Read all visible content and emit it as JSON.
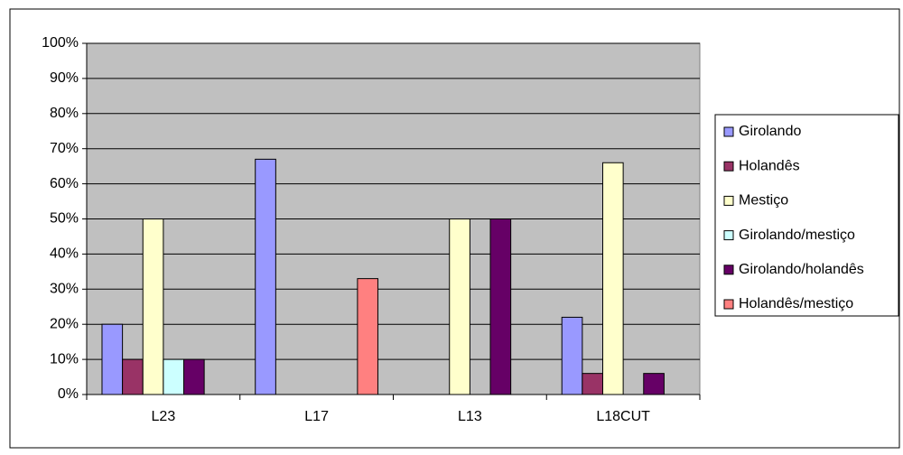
{
  "chart_data": {
    "type": "bar",
    "categories": [
      "L23",
      "L17",
      "L13",
      "L18CUT"
    ],
    "series": [
      {
        "name": "Girolando",
        "color": "#9999FF",
        "values": [
          20,
          67,
          0,
          22
        ]
      },
      {
        "name": "Holandês",
        "color": "#993366",
        "values": [
          10,
          0,
          0,
          6
        ]
      },
      {
        "name": "Mestiço",
        "color": "#FFFFCC",
        "values": [
          50,
          0,
          50,
          66
        ]
      },
      {
        "name": "Girolando/mestiço",
        "color": "#CCFFFF",
        "values": [
          10,
          0,
          0,
          0
        ]
      },
      {
        "name": "Girolando/holandês",
        "color": "#660066",
        "values": [
          10,
          0,
          50,
          6
        ]
      },
      {
        "name": "Holandês/mestiço",
        "color": "#FF8080",
        "values": [
          0,
          33,
          0,
          0
        ]
      }
    ],
    "ylim": [
      0,
      100
    ],
    "yticks": [
      {
        "value": 0,
        "label": "0%"
      },
      {
        "value": 10,
        "label": "10%"
      },
      {
        "value": 20,
        "label": "20%"
      },
      {
        "value": 30,
        "label": "30%"
      },
      {
        "value": 40,
        "label": "40%"
      },
      {
        "value": 50,
        "label": "50%"
      },
      {
        "value": 60,
        "label": "60%"
      },
      {
        "value": 70,
        "label": "70%"
      },
      {
        "value": 80,
        "label": "80%"
      },
      {
        "value": 90,
        "label": "90%"
      },
      {
        "value": 100,
        "label": "100%"
      }
    ],
    "grid": true,
    "plot_background": "#C0C0C0",
    "legend": "right"
  }
}
